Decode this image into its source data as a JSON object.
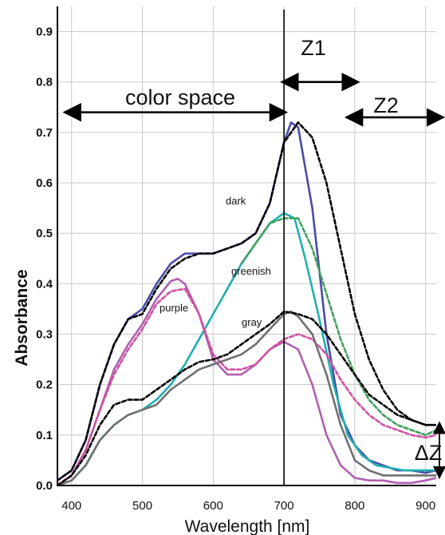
{
  "chart_data": {
    "type": "line",
    "title": "",
    "xlabel": "Wavelength [nm]",
    "ylabel": "Absorbance",
    "xlim": [
      380,
      915
    ],
    "ylim": [
      0.0,
      0.95
    ],
    "grid": true,
    "x_ticks": [
      400,
      500,
      600,
      700,
      800,
      900
    ],
    "x_tick_labels": [
      "400",
      "500",
      "600",
      "700",
      "800",
      "900"
    ],
    "y_ticks": [
      0.0,
      0.1,
      0.2,
      0.3,
      0.4,
      0.5,
      0.6,
      0.7,
      0.8,
      0.9
    ],
    "y_tick_labels": [
      "0.0",
      "0.1",
      "0.2",
      "0.3",
      "0.4",
      "0.5",
      "0.6",
      "0.7",
      "0.8",
      "0.9"
    ],
    "vertical_line_x": 700,
    "annotations": {
      "color_space": {
        "text": "color space",
        "x_from": 390,
        "x_to": 703,
        "y": 0.74
      },
      "z1": {
        "text": "Z1",
        "x_from": 697,
        "x_to": 805,
        "y": 0.8
      },
      "z2": {
        "text": "Z2",
        "x_from": 788,
        "x_to": 925,
        "y": 0.73
      },
      "delta_z": {
        "text": "ΔZ",
        "x": 922,
        "y_from": 0.015,
        "y_to": 0.125
      }
    },
    "curve_labels": [
      {
        "text": "dark",
        "x": 604,
        "y": 0.62
      },
      {
        "text": "greenish",
        "x": 613,
        "y": 0.47
      },
      {
        "text": "purple",
        "x": 524,
        "y": 0.36
      },
      {
        "text": "gray",
        "x": 630,
        "y": 0.32
      }
    ],
    "series": [
      {
        "color": "#4a4aa8",
        "style": "solid",
        "x": [
          380,
          400,
          420,
          440,
          460,
          480,
          500,
          520,
          540,
          560,
          580,
          600,
          620,
          640,
          660,
          680,
          700,
          710,
          720,
          740,
          760,
          780,
          800,
          820,
          840,
          860,
          880,
          900,
          915
        ],
        "y": [
          0.01,
          0.03,
          0.09,
          0.2,
          0.28,
          0.33,
          0.35,
          0.4,
          0.44,
          0.46,
          0.46,
          0.46,
          0.47,
          0.48,
          0.5,
          0.56,
          0.68,
          0.72,
          0.71,
          0.55,
          0.3,
          0.14,
          0.08,
          0.05,
          0.04,
          0.03,
          0.03,
          0.025,
          0.03
        ]
      },
      {
        "color": "#000000",
        "style": "dashed",
        "x": [
          380,
          400,
          420,
          440,
          460,
          480,
          500,
          520,
          540,
          560,
          580,
          600,
          620,
          640,
          660,
          680,
          700,
          720,
          740,
          760,
          780,
          800,
          820,
          840,
          860,
          880,
          900,
          915
        ],
        "y": [
          0.01,
          0.03,
          0.09,
          0.2,
          0.28,
          0.33,
          0.34,
          0.39,
          0.43,
          0.45,
          0.46,
          0.46,
          0.47,
          0.48,
          0.5,
          0.56,
          0.68,
          0.72,
          0.69,
          0.6,
          0.47,
          0.34,
          0.25,
          0.19,
          0.15,
          0.13,
          0.12,
          0.12
        ]
      },
      {
        "color": "#20b0b0",
        "style": "solid",
        "x": [
          380,
          400,
          420,
          440,
          460,
          480,
          500,
          520,
          540,
          560,
          580,
          600,
          620,
          640,
          660,
          680,
          700,
          715,
          730,
          750,
          770,
          790,
          810,
          830,
          850,
          870,
          890,
          915
        ],
        "y": [
          0.0,
          0.01,
          0.04,
          0.09,
          0.12,
          0.14,
          0.15,
          0.17,
          0.2,
          0.24,
          0.29,
          0.34,
          0.39,
          0.44,
          0.48,
          0.52,
          0.54,
          0.53,
          0.45,
          0.33,
          0.2,
          0.1,
          0.06,
          0.04,
          0.035,
          0.03,
          0.03,
          0.03
        ]
      },
      {
        "color": "#40a060",
        "style": "dashed",
        "x": [
          640,
          660,
          680,
          700,
          720,
          740,
          760,
          780,
          800,
          820,
          840,
          860,
          880,
          900,
          915
        ],
        "y": [
          0.44,
          0.48,
          0.52,
          0.53,
          0.53,
          0.47,
          0.38,
          0.29,
          0.22,
          0.17,
          0.14,
          0.12,
          0.11,
          0.1,
          0.11
        ]
      },
      {
        "color": "#b060b0",
        "style": "solid",
        "x": [
          380,
          400,
          420,
          440,
          460,
          480,
          500,
          520,
          540,
          550,
          560,
          580,
          600,
          620,
          640,
          660,
          680,
          700,
          720,
          740,
          760,
          780,
          800,
          820,
          840,
          860,
          880,
          900,
          915
        ],
        "y": [
          0.0,
          0.02,
          0.07,
          0.15,
          0.23,
          0.28,
          0.32,
          0.37,
          0.405,
          0.41,
          0.4,
          0.34,
          0.25,
          0.22,
          0.22,
          0.24,
          0.27,
          0.285,
          0.27,
          0.2,
          0.1,
          0.04,
          0.015,
          0.01,
          0.01,
          0.005,
          0.005,
          0.01,
          0.015
        ]
      },
      {
        "color": "#d050a0",
        "style": "dashed",
        "x": [
          380,
          400,
          420,
          440,
          460,
          480,
          500,
          520,
          540,
          560,
          580,
          600,
          620,
          640,
          660,
          680,
          700,
          720,
          740,
          760,
          780,
          800,
          820,
          840,
          860,
          880,
          900,
          915
        ],
        "y": [
          0.0,
          0.02,
          0.07,
          0.15,
          0.22,
          0.27,
          0.31,
          0.36,
          0.385,
          0.39,
          0.34,
          0.26,
          0.23,
          0.23,
          0.24,
          0.27,
          0.29,
          0.3,
          0.29,
          0.26,
          0.21,
          0.17,
          0.14,
          0.12,
          0.11,
          0.1,
          0.095,
          0.1
        ]
      },
      {
        "color": "#707070",
        "style": "solid",
        "x": [
          380,
          400,
          420,
          440,
          460,
          480,
          500,
          520,
          540,
          560,
          580,
          600,
          620,
          640,
          660,
          680,
          700,
          710,
          720,
          740,
          760,
          780,
          800,
          820,
          840,
          860,
          880,
          900,
          915
        ],
        "y": [
          0.0,
          0.01,
          0.04,
          0.09,
          0.12,
          0.14,
          0.15,
          0.16,
          0.19,
          0.21,
          0.23,
          0.24,
          0.25,
          0.26,
          0.28,
          0.31,
          0.34,
          0.345,
          0.335,
          0.3,
          0.22,
          0.12,
          0.05,
          0.03,
          0.02,
          0.02,
          0.02,
          0.02,
          0.02
        ]
      },
      {
        "color": "#000000",
        "style": "dashed",
        "x": [
          380,
          400,
          420,
          440,
          460,
          480,
          500,
          520,
          540,
          560,
          580,
          600,
          620,
          640,
          660,
          680,
          700,
          720,
          740,
          760,
          780,
          800,
          820,
          840,
          860,
          880,
          900,
          915
        ],
        "y": [
          0.0,
          0.02,
          0.06,
          0.12,
          0.16,
          0.17,
          0.17,
          0.19,
          0.21,
          0.23,
          0.245,
          0.25,
          0.26,
          0.28,
          0.3,
          0.32,
          0.345,
          0.34,
          0.33,
          0.3,
          0.26,
          0.22,
          0.18,
          0.16,
          0.14,
          0.13,
          0.12,
          0.12
        ]
      }
    ]
  }
}
